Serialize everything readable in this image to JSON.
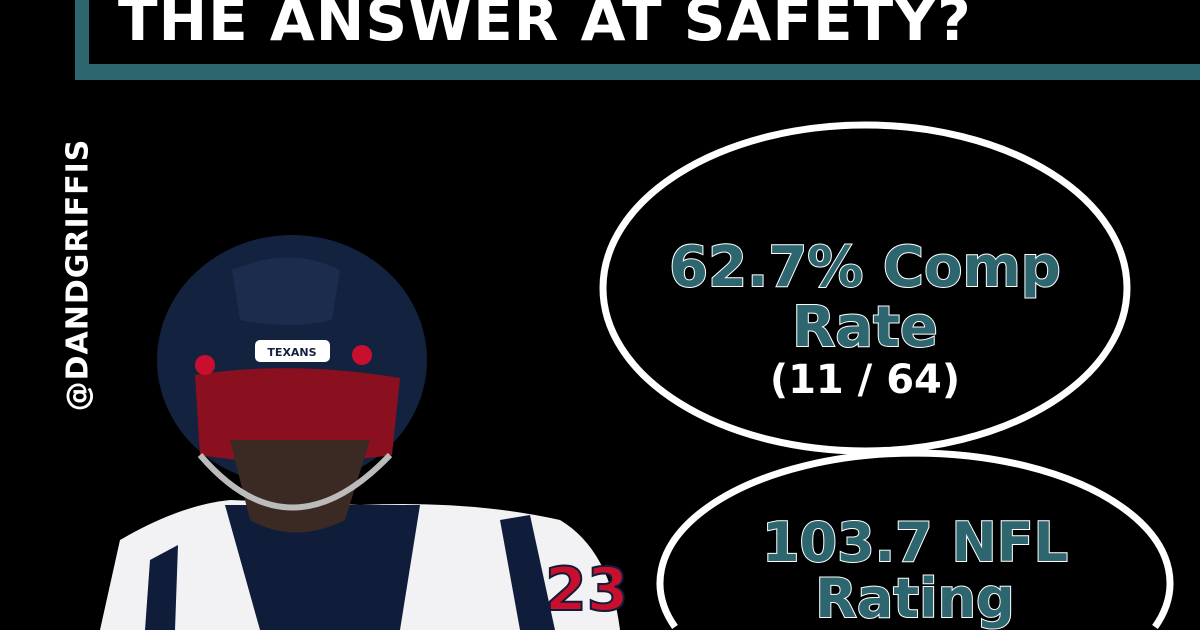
{
  "headline": "THE ANSWER AT SAFETY?",
  "handle": "@DANDGRIFFIS",
  "stats": [
    {
      "line1": "62.7% Comp",
      "line2": "Rate",
      "detail": "(11 / 64)"
    },
    {
      "line1": "103.7 NFL",
      "line2": "Rating"
    }
  ],
  "player": {
    "helmet_text": "TEXANS",
    "jersey_number": "23"
  },
  "colors": {
    "accent": "#2e6670",
    "background": "#000000",
    "text": "#ffffff"
  }
}
